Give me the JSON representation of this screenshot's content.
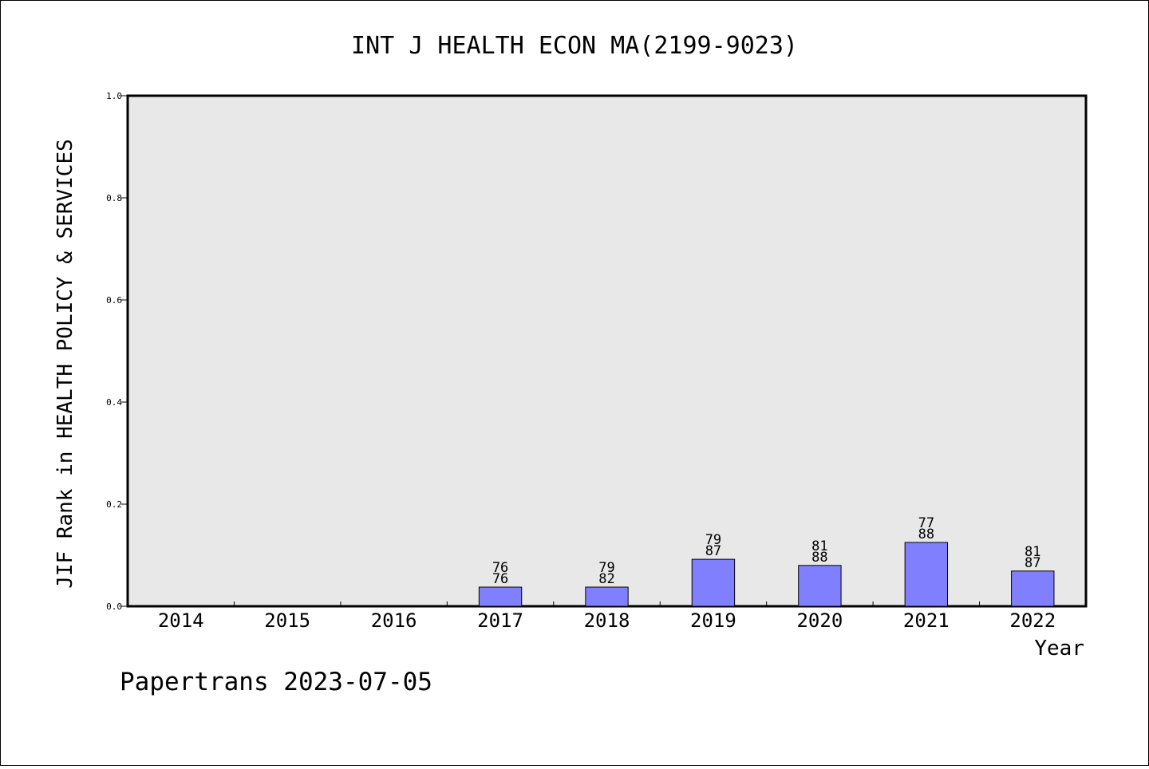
{
  "chart_data": {
    "type": "bar",
    "title": "INT J HEALTH ECON MA(2199-9023)",
    "xlabel": "Year",
    "ylabel": "JIF Rank in HEALTH POLICY & SERVICES",
    "categories": [
      "2014",
      "2015",
      "2016",
      "2017",
      "2018",
      "2019",
      "2020",
      "2021",
      "2022"
    ],
    "values": [
      null,
      null,
      null,
      0.0375,
      0.0375,
      0.092,
      0.08,
      0.125,
      0.069
    ],
    "bar_labels": [
      null,
      null,
      null,
      [
        "76",
        "76"
      ],
      [
        "79",
        "82"
      ],
      [
        "79",
        "87"
      ],
      [
        "81",
        "88"
      ],
      [
        "77",
        "88"
      ],
      [
        "81",
        "87"
      ]
    ],
    "ylim": [
      0,
      1.0
    ],
    "yticks": [
      {
        "value": 0.0,
        "label": "0.0"
      },
      {
        "value": 0.2,
        "label": "0.2"
      },
      {
        "value": 0.4,
        "label": "0.4"
      },
      {
        "value": 0.6,
        "label": "0.6"
      },
      {
        "value": 0.8,
        "label": "0.8"
      },
      {
        "value": 1.0,
        "label": "1.0"
      }
    ],
    "grid": false,
    "colors": {
      "bar_fill": "#8080ff",
      "plot_background": "#e8e8e8"
    }
  },
  "footer": {
    "credit": "Papertrans 2023-07-05"
  }
}
